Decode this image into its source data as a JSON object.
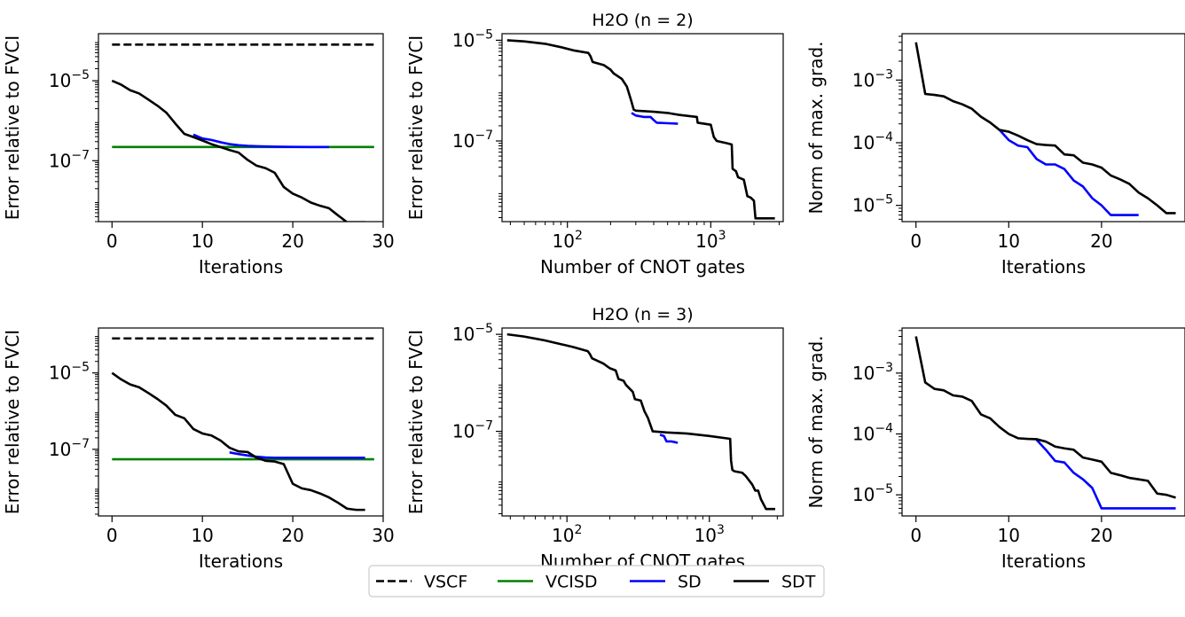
{
  "legend": {
    "placement": "bottom-center",
    "entries": [
      {
        "label": "VSCF",
        "color": "#000000",
        "style": "dashed"
      },
      {
        "label": "VCISD",
        "color": "#008000",
        "style": "solid"
      },
      {
        "label": "SD",
        "color": "#0000ff",
        "style": "solid"
      },
      {
        "label": "SDT",
        "color": "#000000",
        "style": "solid"
      }
    ]
  },
  "chart_data": [
    {
      "type": "line",
      "title": "",
      "xlabel": "Iterations",
      "ylabel": "Error relative to FVCI",
      "yscale": "log",
      "xlim": [
        -1.5,
        30
      ],
      "ylim": [
        3e-09,
        0.00015
      ],
      "xticks": [
        {
          "v": 0,
          "label": "0"
        },
        {
          "v": 10,
          "label": "10"
        },
        {
          "v": 20,
          "label": "20"
        },
        {
          "v": 30,
          "label": "30"
        }
      ],
      "yticks": [
        {
          "v": 1e-05,
          "label": "10",
          "exp": "−5"
        },
        {
          "v": 1e-07,
          "label": "10",
          "exp": "−7"
        }
      ],
      "series": [
        {
          "name": "VSCF",
          "color": "#000000",
          "dash": true,
          "x": [
            0,
            29
          ],
          "y": [
            8e-05,
            8e-05
          ]
        },
        {
          "name": "VCISD",
          "color": "#008000",
          "x": [
            0,
            29
          ],
          "y": [
            2.2e-07,
            2.2e-07
          ]
        },
        {
          "name": "SD",
          "color": "#0000ff",
          "x": [
            9,
            10,
            11,
            12,
            13,
            14,
            15,
            16,
            18,
            20,
            22,
            24
          ],
          "y": [
            4.5e-07,
            3.6e-07,
            3.3e-07,
            2.9e-07,
            2.6e-07,
            2.45e-07,
            2.35e-07,
            2.3e-07,
            2.25e-07,
            2.22e-07,
            2.2e-07,
            2.2e-07
          ]
        },
        {
          "name": "SDT",
          "color": "#000000",
          "x": [
            0,
            1,
            2,
            3,
            4,
            5,
            6,
            7,
            8,
            9,
            10,
            11,
            12,
            13,
            14,
            15,
            16,
            17,
            18,
            19,
            20,
            21,
            22,
            23,
            24,
            25,
            26,
            27,
            28
          ],
          "y": [
            1e-05,
            8e-06,
            5.8e-06,
            4.8e-06,
            3.4e-06,
            2.4e-06,
            1.6e-06,
            8.5e-07,
            4.7e-07,
            3.9e-07,
            3.2e-07,
            2.6e-07,
            2.2e-07,
            1.85e-07,
            1.6e-07,
            1.05e-07,
            7.5e-08,
            6.5e-08,
            5e-08,
            2.2e-08,
            1.5e-08,
            1.2e-08,
            9e-09,
            7.5e-09,
            6.5e-09,
            4.3e-09,
            2.9e-09,
            2.9e-09,
            2.9e-09
          ]
        }
      ]
    },
    {
      "type": "line",
      "title": "H2O (n = 2)",
      "xlabel": "Number of CNOT gates",
      "ylabel": "Error relative to FVCI",
      "xscale": "log",
      "yscale": "log",
      "xlim": [
        35,
        3200
      ],
      "ylim": [
        2.5e-09,
        1.35e-05
      ],
      "xticks": [
        {
          "v": 100,
          "label": "10",
          "exp": "2"
        },
        {
          "v": 1000,
          "label": "10",
          "exp": "3"
        }
      ],
      "yticks": [
        {
          "v": 1e-05,
          "label": "10",
          "exp": "−5"
        },
        {
          "v": 1e-07,
          "label": "10",
          "exp": "−7"
        }
      ],
      "series": [
        {
          "name": "SD",
          "color": "#0000ff",
          "x": [
            280,
            300,
            340,
            380,
            400,
            420,
            500,
            590
          ],
          "y": [
            3.6e-07,
            3.2e-07,
            3e-07,
            3e-07,
            2.6e-07,
            2.3e-07,
            2.25e-07,
            2.2e-07
          ]
        },
        {
          "name": "SDT",
          "color": "#000000",
          "x": [
            38,
            50,
            70,
            90,
            110,
            140,
            145,
            150,
            180,
            200,
            210,
            240,
            260,
            280,
            290,
            300,
            400,
            500,
            600,
            800,
            810,
            1000,
            1050,
            1100,
            1300,
            1400,
            1420,
            1500,
            1550,
            1700,
            1800,
            1900,
            2000,
            2050,
            2100,
            2500,
            2800
          ],
          "y": [
            1e-05,
            9.5e-06,
            8.5e-06,
            7.3e-06,
            6.3e-06,
            5.6e-06,
            4.8e-06,
            3.7e-06,
            3.2e-06,
            2.6e-06,
            2.2e-06,
            1.7e-06,
            1.2e-06,
            6e-07,
            4.2e-07,
            4e-07,
            3.8e-07,
            3.6e-07,
            3.3e-07,
            3e-07,
            2.3e-07,
            2.1e-07,
            1.2e-07,
            1e-07,
            9e-08,
            8.5e-08,
            2.8e-08,
            2.5e-08,
            1.9e-08,
            1.7e-08,
            8e-09,
            7.5e-09,
            6.5e-09,
            2.9e-09,
            2.9e-09,
            2.9e-09,
            2.9e-09
          ]
        }
      ]
    },
    {
      "type": "line",
      "title": "",
      "xlabel": "Iterations",
      "ylabel": "Norm of max. grad.",
      "yscale": "log",
      "xlim": [
        -1.5,
        29
      ],
      "ylim": [
        5.5e-06,
        0.0055
      ],
      "xticks": [
        {
          "v": 0,
          "label": "0"
        },
        {
          "v": 10,
          "label": "10"
        },
        {
          "v": 20,
          "label": "20"
        }
      ],
      "yticks": [
        {
          "v": 0.001,
          "label": "10",
          "exp": "−3"
        },
        {
          "v": 0.0001,
          "label": "10",
          "exp": "−4"
        },
        {
          "v": 1e-05,
          "label": "10",
          "exp": "−5"
        }
      ],
      "series": [
        {
          "name": "SD",
          "color": "#0000ff",
          "x": [
            9,
            10,
            11,
            12,
            13,
            14,
            15,
            16,
            17,
            18,
            19,
            20,
            21,
            22,
            23,
            24
          ],
          "y": [
            0.00016,
            0.00011,
            9e-05,
            8.5e-05,
            5.5e-05,
            4.5e-05,
            4.5e-05,
            3.8e-05,
            2.5e-05,
            2e-05,
            1.3e-05,
            1e-05,
            7e-06,
            7e-06,
            7e-06,
            7e-06
          ]
        },
        {
          "name": "SDT",
          "color": "#000000",
          "x": [
            0,
            1,
            2,
            3,
            4,
            5,
            6,
            7,
            8,
            9,
            10,
            11,
            12,
            13,
            14,
            15,
            16,
            17,
            18,
            19,
            20,
            21,
            22,
            23,
            24,
            25,
            26,
            27,
            28
          ],
          "y": [
            0.004,
            0.0006,
            0.00058,
            0.00055,
            0.00046,
            0.00041,
            0.00035,
            0.00026,
            0.00021,
            0.00016,
            0.00015,
            0.00013,
            0.00011,
            9.5e-05,
            9.2e-05,
            9e-05,
            6.5e-05,
            6.3e-05,
            4.8e-05,
            4.5e-05,
            4e-05,
            3e-05,
            2.6e-05,
            2.2e-05,
            1.6e-05,
            1.3e-05,
            1e-05,
            7.5e-06,
            7.5e-06
          ]
        }
      ]
    },
    {
      "type": "line",
      "title": "",
      "xlabel": "Iterations",
      "ylabel": "Error relative to FVCI",
      "yscale": "log",
      "xlim": [
        -1.5,
        30
      ],
      "ylim": [
        1.8e-09,
        0.00015
      ],
      "xticks": [
        {
          "v": 0,
          "label": "0"
        },
        {
          "v": 10,
          "label": "10"
        },
        {
          "v": 20,
          "label": "20"
        },
        {
          "v": 30,
          "label": "30"
        }
      ],
      "yticks": [
        {
          "v": 1e-05,
          "label": "10",
          "exp": "−5"
        },
        {
          "v": 1e-07,
          "label": "10",
          "exp": "−7"
        }
      ],
      "series": [
        {
          "name": "VSCF",
          "color": "#000000",
          "dash": true,
          "x": [
            0,
            29
          ],
          "y": [
            8e-05,
            8e-05
          ]
        },
        {
          "name": "VCISD",
          "color": "#008000",
          "x": [
            0,
            29
          ],
          "y": [
            5.5e-08,
            5.5e-08
          ]
        },
        {
          "name": "SD",
          "color": "#0000ff",
          "x": [
            13,
            14,
            15,
            16,
            17,
            18,
            20,
            22,
            24,
            26,
            28
          ],
          "y": [
            8.3e-08,
            7.5e-08,
            6.9e-08,
            6.4e-08,
            6.1e-08,
            6e-08,
            6e-08,
            6e-08,
            6e-08,
            6e-08,
            6e-08
          ]
        },
        {
          "name": "SDT",
          "color": "#000000",
          "x": [
            0,
            1,
            2,
            3,
            4,
            5,
            6,
            7,
            8,
            9,
            10,
            11,
            12,
            13,
            14,
            15,
            16,
            17,
            18,
            19,
            20,
            21,
            22,
            23,
            24,
            25,
            26,
            27,
            28
          ],
          "y": [
            1e-05,
            6.8e-06,
            5e-06,
            4.2e-06,
            3e-06,
            2.1e-06,
            1.4e-06,
            8e-07,
            6.5e-07,
            3.4e-07,
            2.6e-07,
            2.3e-07,
            1.7e-07,
            1.1e-07,
            8.8e-08,
            8.5e-08,
            6e-08,
            5e-08,
            4.8e-08,
            4.1e-08,
            1.25e-08,
            9.5e-09,
            8.5e-09,
            7e-09,
            5.5e-09,
            4e-09,
            2.8e-09,
            2.6e-09,
            2.6e-09
          ]
        }
      ]
    },
    {
      "type": "line",
      "title": "H2O (n = 3)",
      "xlabel": "Number of CNOT gates",
      "ylabel": "Error relative to FVCI",
      "xscale": "log",
      "yscale": "log",
      "xlim": [
        35,
        3300
      ],
      "ylim": [
        1.8e-09,
        1.35e-05
      ],
      "xticks": [
        {
          "v": 100,
          "label": "10",
          "exp": "2"
        },
        {
          "v": 1000,
          "label": "10",
          "exp": "3"
        }
      ],
      "yticks": [
        {
          "v": 1e-05,
          "label": "10",
          "exp": "−5"
        },
        {
          "v": 1e-07,
          "label": "10",
          "exp": "−7"
        }
      ],
      "series": [
        {
          "name": "SD",
          "color": "#0000ff",
          "x": [
            450,
            480,
            500,
            540,
            600
          ],
          "y": [
            8.5e-08,
            8e-08,
            6.2e-08,
            6.2e-08,
            5.8e-08
          ]
        },
        {
          "name": "SDT",
          "color": "#000000",
          "x": [
            38,
            50,
            70,
            90,
            110,
            140,
            145,
            150,
            180,
            200,
            220,
            230,
            250,
            260,
            290,
            300,
            330,
            350,
            370,
            400,
            500,
            700,
            1000,
            1400,
            1420,
            1450,
            1500,
            1700,
            1800,
            2000,
            2100,
            2200,
            2300,
            2500,
            2700,
            2900
          ],
          "y": [
            1e-05,
            9e-06,
            7.5e-06,
            6.3e-06,
            5.5e-06,
            4.5e-06,
            3.9e-06,
            3.2e-06,
            2.5e-06,
            2e-06,
            1.8e-06,
            1.2e-06,
            1.1e-06,
            9e-07,
            6.5e-07,
            4.6e-07,
            4.3e-07,
            2.6e-07,
            1.9e-07,
            1e-07,
            9.5e-08,
            9e-08,
            8e-08,
            7e-08,
            2.5e-08,
            1.6e-08,
            1.5e-08,
            1.4e-08,
            1.2e-08,
            8e-09,
            6e-09,
            6e-09,
            4e-09,
            2.5e-09,
            2.5e-09,
            2.5e-09
          ]
        }
      ]
    },
    {
      "type": "line",
      "title": "",
      "xlabel": "Iterations",
      "ylabel": "Norm of max. grad.",
      "yscale": "log",
      "xlim": [
        -1.5,
        29
      ],
      "ylim": [
        4.5e-06,
        0.0055
      ],
      "xticks": [
        {
          "v": 0,
          "label": "0"
        },
        {
          "v": 10,
          "label": "10"
        },
        {
          "v": 20,
          "label": "20"
        }
      ],
      "yticks": [
        {
          "v": 0.001,
          "label": "10",
          "exp": "−3"
        },
        {
          "v": 0.0001,
          "label": "10",
          "exp": "−4"
        },
        {
          "v": 1e-05,
          "label": "10",
          "exp": "−5"
        }
      ],
      "series": [
        {
          "name": "SD",
          "color": "#0000ff",
          "x": [
            13,
            14,
            15,
            16,
            17,
            18,
            19,
            20,
            22,
            24,
            26,
            28
          ],
          "y": [
            8e-05,
            5.5e-05,
            3.6e-05,
            3.4e-05,
            2.3e-05,
            1.8e-05,
            1.3e-05,
            6e-06,
            6e-06,
            6e-06,
            6e-06,
            6e-06
          ]
        },
        {
          "name": "SDT",
          "color": "#000000",
          "x": [
            0,
            1,
            2,
            3,
            4,
            5,
            6,
            7,
            8,
            9,
            10,
            11,
            12,
            13,
            14,
            15,
            16,
            17,
            18,
            19,
            20,
            21,
            22,
            23,
            24,
            25,
            26,
            27,
            28
          ],
          "y": [
            0.004,
            0.0007,
            0.00055,
            0.00052,
            0.00043,
            0.00041,
            0.00035,
            0.00021,
            0.00018,
            0.00013,
            0.0001,
            8.5e-05,
            8.3e-05,
            8.2e-05,
            7.5e-05,
            6.2e-05,
            5.8e-05,
            5.5e-05,
            4.1e-05,
            3.8e-05,
            3.5e-05,
            2.3e-05,
            2.1e-05,
            1.9e-05,
            1.8e-05,
            1.7e-05,
            1.05e-05,
            1e-05,
            9e-06
          ]
        }
      ]
    }
  ]
}
